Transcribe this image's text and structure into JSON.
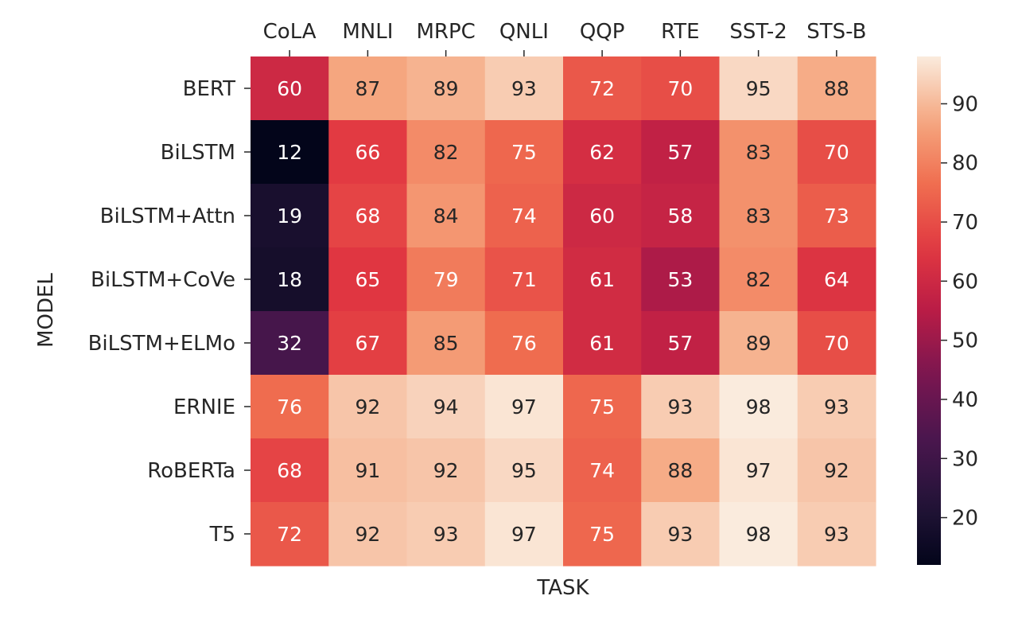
{
  "chart_data": {
    "type": "heatmap",
    "xlabel": "TASK",
    "ylabel": "MODEL",
    "x_labels_position": "top",
    "colormap": "rocket",
    "columns": [
      "CoLA",
      "MNLI",
      "MRPC",
      "QNLI",
      "QQP",
      "RTE",
      "SST-2",
      "STS-B"
    ],
    "rows": [
      "BERT",
      "BiLSTM",
      "BiLSTM+Attn",
      "BiLSTM+CoVe",
      "BiLSTM+ELMo",
      "ERNIE",
      "RoBERTa",
      "T5"
    ],
    "values": [
      [
        60,
        87,
        89,
        93,
        72,
        70,
        95,
        88
      ],
      [
        12,
        66,
        82,
        75,
        62,
        57,
        83,
        70
      ],
      [
        19,
        68,
        84,
        74,
        60,
        58,
        83,
        73
      ],
      [
        18,
        65,
        79,
        71,
        61,
        53,
        82,
        64
      ],
      [
        32,
        67,
        85,
        76,
        61,
        57,
        89,
        70
      ],
      [
        76,
        92,
        94,
        97,
        75,
        93,
        98,
        93
      ],
      [
        68,
        91,
        92,
        95,
        74,
        88,
        97,
        92
      ],
      [
        72,
        92,
        93,
        97,
        75,
        93,
        98,
        93
      ]
    ],
    "colorbar": {
      "vmin": 12,
      "vmax": 98,
      "ticks": [
        20,
        30,
        40,
        50,
        60,
        70,
        80,
        90
      ]
    }
  }
}
